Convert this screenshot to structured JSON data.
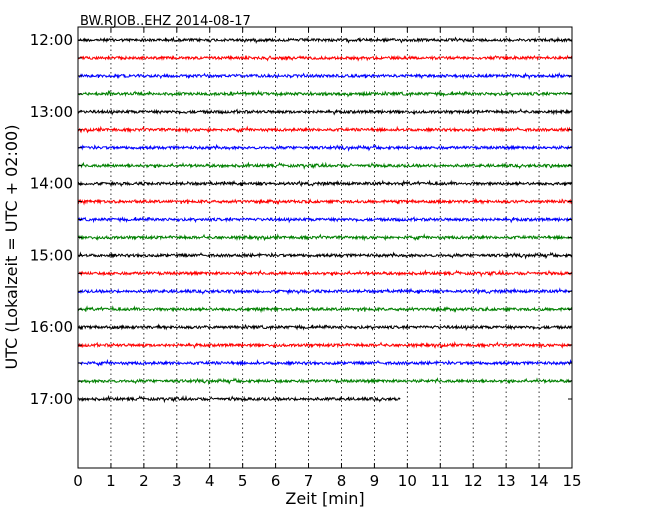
{
  "chart_data": {
    "type": "line",
    "subtype": "dayplot-seismogram",
    "title": "BW.RJOB..EHZ 2014-08-17",
    "xlabel": "Zeit  [min]",
    "ylabel": "UTC (Lokalzeit = UTC + 02:00)",
    "xlim": [
      0,
      15
    ],
    "x_ticks": [
      "0",
      "1",
      "2",
      "3",
      "4",
      "5",
      "6",
      "7",
      "8",
      "9",
      "10",
      "11",
      "12",
      "13",
      "14",
      "15"
    ],
    "y_tick_labels": [
      "12:00",
      "13:00",
      "14:00",
      "15:00",
      "16:00",
      "17:00"
    ],
    "grid": "vertical dotted lines at each minute",
    "trace_interval_minutes": 15,
    "color_cycle": [
      "#000000",
      "#ff0000",
      "#0000ff",
      "#008000"
    ],
    "series": [
      {
        "start": "12:00",
        "duration_min": 15
      },
      {
        "start": "12:15",
        "duration_min": 15
      },
      {
        "start": "12:30",
        "duration_min": 15
      },
      {
        "start": "12:45",
        "duration_min": 15
      },
      {
        "start": "13:00",
        "duration_min": 15
      },
      {
        "start": "13:15",
        "duration_min": 15
      },
      {
        "start": "13:30",
        "duration_min": 15
      },
      {
        "start": "13:45",
        "duration_min": 15
      },
      {
        "start": "14:00",
        "duration_min": 15
      },
      {
        "start": "14:15",
        "duration_min": 15
      },
      {
        "start": "14:30",
        "duration_min": 15
      },
      {
        "start": "14:45",
        "duration_min": 15
      },
      {
        "start": "15:00",
        "duration_min": 15
      },
      {
        "start": "15:15",
        "duration_min": 15
      },
      {
        "start": "15:30",
        "duration_min": 15
      },
      {
        "start": "15:45",
        "duration_min": 15
      },
      {
        "start": "16:00",
        "duration_min": 15
      },
      {
        "start": "16:15",
        "duration_min": 15
      },
      {
        "start": "16:30",
        "duration_min": 15
      },
      {
        "start": "16:45",
        "duration_min": 15
      },
      {
        "start": "17:00",
        "duration_min": 9.8
      }
    ]
  }
}
